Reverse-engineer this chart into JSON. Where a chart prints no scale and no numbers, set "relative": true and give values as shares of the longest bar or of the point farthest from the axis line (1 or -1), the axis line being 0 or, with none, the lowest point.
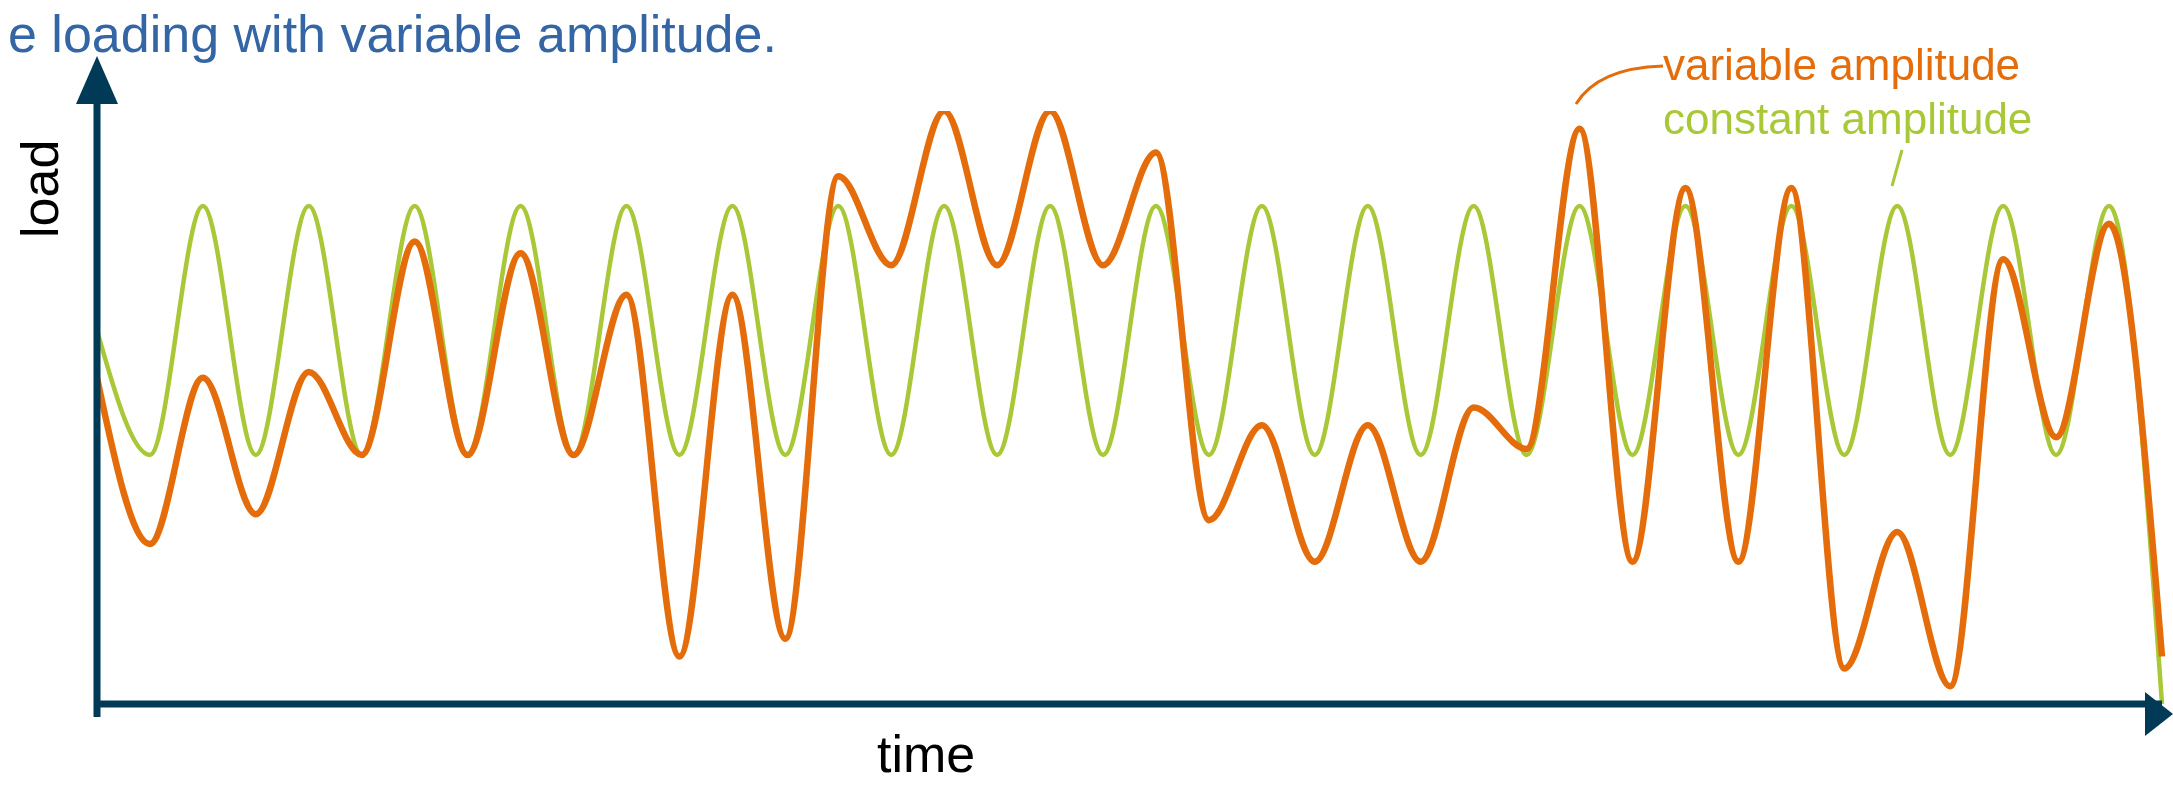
{
  "chart_data": {
    "type": "line",
    "title": "e loading with variable amplitude.",
    "xlabel": "time",
    "ylabel": "load",
    "relative": true,
    "legend": "top right",
    "categories": [
      null,
      null,
      null,
      null,
      null,
      null,
      null,
      null,
      null,
      null,
      null,
      null,
      null,
      null,
      null,
      null,
      null,
      null,
      null,
      null,
      null,
      null,
      null,
      null,
      null,
      null,
      null,
      null,
      null,
      null,
      null,
      null,
      null,
      null,
      null,
      null,
      null,
      null,
      null,
      null
    ],
    "series": [
      {
        "name": "variable amplitude",
        "color": "#e46c0a",
        "values": [
          0.55,
          0.27,
          0.55,
          0.32,
          0.56,
          0.42,
          0.78,
          0.42,
          0.76,
          0.42,
          0.69,
          0.08,
          0.69,
          0.11,
          0.89,
          0.74,
          1,
          0.74,
          1,
          0.74,
          0.93,
          0.31,
          0.47,
          0.24,
          0.47,
          0.24,
          0.5,
          0.43,
          0.97,
          0.24,
          0.87,
          0.24,
          0.87,
          0.06,
          0.29,
          0.03,
          0.75,
          0.45,
          0.81,
          0.08
        ]
      },
      {
        "name": "constant amplitude",
        "color": "#a8c838",
        "values": [
          0.63,
          0.42,
          0.84,
          0.42,
          0.84,
          0.42,
          0.84,
          0.42,
          0.84,
          0.42,
          0.84,
          0.42,
          0.84,
          0.42,
          0.84,
          0.42,
          0.84,
          0.42,
          0.84,
          0.42,
          0.84,
          0.42,
          0.84,
          0.42,
          0.84,
          0.42,
          0.84,
          0.42,
          0.84,
          0.42,
          0.84,
          0.42,
          0.84,
          0.42,
          0.84,
          0.42,
          0.84,
          0.42,
          0.84,
          0
        ]
      }
    ]
  }
}
